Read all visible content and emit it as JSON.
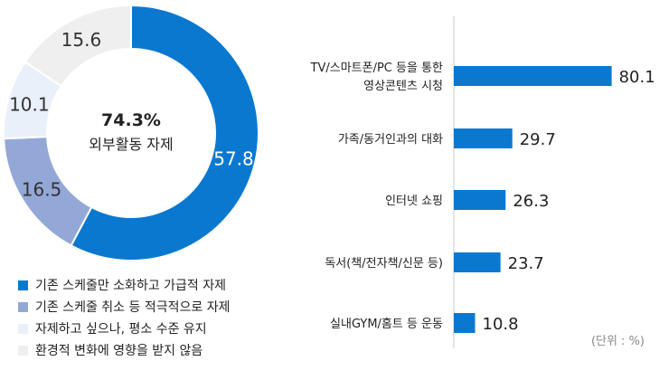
{
  "chart_data": [
    {
      "type": "pie",
      "variant": "donut",
      "center_value": "74.3%",
      "center_label": "외부활동 자제",
      "slices": [
        {
          "name": "기존 스케줄만 소화하고 가급적 자제",
          "value": 57.8,
          "label": "57.8",
          "color": "#0b78d0"
        },
        {
          "name": "기존 스케줄 취소 등 적극적으로 자제",
          "value": 16.5,
          "label": "16.5",
          "color": "#93a8d6"
        },
        {
          "name": "자제하고 싶으나, 평소 수준 유지",
          "value": 10.1,
          "label": "10.1",
          "color": "#eaf0fa"
        },
        {
          "name": "환경적 변화에 영향을 받지 않음",
          "value": 15.6,
          "label": "15.6",
          "color": "#efefef"
        }
      ],
      "legend_position": "bottom"
    },
    {
      "type": "bar",
      "orientation": "horizontal",
      "categories": [
        [
          "TV/스마트폰/PC 등을 통한",
          "영상콘텐츠 시청"
        ],
        [
          "가족/동거인과의 대화"
        ],
        [
          "인터넷 쇼핑"
        ],
        [
          "독서(책/전자책/신문 등)"
        ],
        [
          "실내GYM/홈트 등 운동"
        ]
      ],
      "values": [
        80.1,
        29.7,
        26.3,
        23.7,
        10.8
      ],
      "value_labels": [
        "80.1",
        "29.7",
        "26.3",
        "23.7",
        "10.8"
      ],
      "unit": "(단위 : %)",
      "xlim": [
        0,
        100
      ],
      "grid": false,
      "bar_color": "#0b78d0"
    }
  ]
}
